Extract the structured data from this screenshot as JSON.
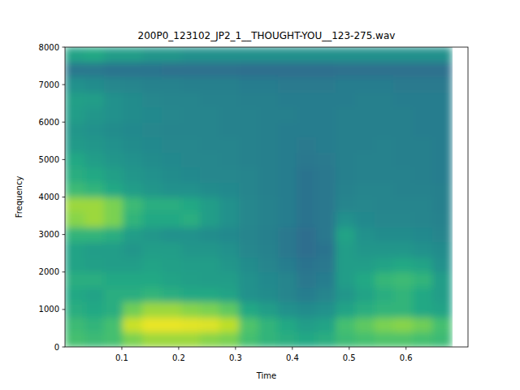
{
  "chart_data": {
    "type": "heatmap",
    "title": "200P0_123102_JP2_1__THOUGHT-YOU__123-275.wav",
    "x_label": "Time",
    "y_label": "Frequency",
    "xlim": [
      0,
      0.709
    ],
    "ylim": [
      0,
      8000
    ],
    "xticks": [
      0.1,
      0.2,
      0.3,
      0.4,
      0.5,
      0.6
    ],
    "yticks": [
      0,
      1000,
      2000,
      3000,
      4000,
      5000,
      6000,
      7000,
      8000
    ],
    "zlim": [
      0,
      1
    ],
    "x_bins": [
      0,
      0.034,
      0.068,
      0.102,
      0.136,
      0.17,
      0.204,
      0.238,
      0.272,
      0.306,
      0.34,
      0.374,
      0.408,
      0.442,
      0.476,
      0.51,
      0.544,
      0.578,
      0.612,
      0.646,
      0.68
    ],
    "y_bins": [
      0,
      400,
      800,
      1200,
      1600,
      2000,
      2400,
      2800,
      3200,
      3600,
      4000,
      4400,
      4800,
      5200,
      5600,
      6000,
      6400,
      6800,
      7200,
      7600,
      8000
    ],
    "cells": [
      [
        0.7,
        0.68,
        0.7,
        0.8,
        0.85,
        0.85,
        0.85,
        0.82,
        0.8,
        0.7,
        0.65,
        0.62,
        0.6,
        0.62,
        0.68,
        0.7,
        0.72,
        0.72,
        0.7,
        0.68
      ],
      [
        0.68,
        0.65,
        0.7,
        0.92,
        0.97,
        0.97,
        0.96,
        0.95,
        0.9,
        0.72,
        0.65,
        0.6,
        0.55,
        0.58,
        0.7,
        0.75,
        0.8,
        0.82,
        0.78,
        0.7
      ],
      [
        0.62,
        0.6,
        0.62,
        0.78,
        0.85,
        0.85,
        0.82,
        0.8,
        0.75,
        0.6,
        0.55,
        0.5,
        0.48,
        0.5,
        0.58,
        0.62,
        0.65,
        0.65,
        0.6,
        0.58
      ],
      [
        0.6,
        0.58,
        0.62,
        0.62,
        0.65,
        0.62,
        0.6,
        0.6,
        0.58,
        0.5,
        0.48,
        0.45,
        0.42,
        0.45,
        0.52,
        0.58,
        0.62,
        0.65,
        0.6,
        0.55
      ],
      [
        0.62,
        0.62,
        0.6,
        0.6,
        0.6,
        0.58,
        0.56,
        0.55,
        0.55,
        0.5,
        0.47,
        0.45,
        0.4,
        0.42,
        0.55,
        0.6,
        0.66,
        0.68,
        0.65,
        0.55
      ],
      [
        0.58,
        0.56,
        0.55,
        0.55,
        0.58,
        0.56,
        0.55,
        0.55,
        0.52,
        0.48,
        0.45,
        0.42,
        0.38,
        0.4,
        0.55,
        0.55,
        0.58,
        0.6,
        0.58,
        0.5
      ],
      [
        0.58,
        0.55,
        0.55,
        0.52,
        0.55,
        0.55,
        0.52,
        0.52,
        0.5,
        0.46,
        0.44,
        0.4,
        0.36,
        0.38,
        0.55,
        0.52,
        0.52,
        0.52,
        0.5,
        0.48
      ],
      [
        0.65,
        0.65,
        0.62,
        0.55,
        0.52,
        0.5,
        0.5,
        0.48,
        0.47,
        0.45,
        0.43,
        0.4,
        0.36,
        0.4,
        0.58,
        0.5,
        0.48,
        0.48,
        0.47,
        0.45
      ],
      [
        0.82,
        0.85,
        0.8,
        0.65,
        0.6,
        0.6,
        0.62,
        0.55,
        0.5,
        0.46,
        0.44,
        0.42,
        0.38,
        0.4,
        0.5,
        0.47,
        0.46,
        0.46,
        0.45,
        0.44
      ],
      [
        0.85,
        0.85,
        0.8,
        0.68,
        0.62,
        0.62,
        0.6,
        0.55,
        0.5,
        0.46,
        0.44,
        0.42,
        0.38,
        0.4,
        0.45,
        0.46,
        0.45,
        0.45,
        0.45,
        0.43
      ],
      [
        0.68,
        0.65,
        0.6,
        0.55,
        0.52,
        0.5,
        0.5,
        0.48,
        0.47,
        0.45,
        0.43,
        0.42,
        0.38,
        0.4,
        0.44,
        0.45,
        0.45,
        0.44,
        0.44,
        0.43
      ],
      [
        0.62,
        0.6,
        0.56,
        0.52,
        0.5,
        0.48,
        0.47,
        0.46,
        0.46,
        0.45,
        0.43,
        0.42,
        0.38,
        0.4,
        0.43,
        0.44,
        0.44,
        0.44,
        0.43,
        0.42
      ],
      [
        0.6,
        0.55,
        0.52,
        0.5,
        0.48,
        0.47,
        0.46,
        0.46,
        0.45,
        0.44,
        0.43,
        0.42,
        0.4,
        0.41,
        0.43,
        0.44,
        0.44,
        0.43,
        0.43,
        0.42
      ],
      [
        0.54,
        0.52,
        0.5,
        0.48,
        0.47,
        0.46,
        0.46,
        0.45,
        0.45,
        0.44,
        0.43,
        0.42,
        0.41,
        0.42,
        0.43,
        0.43,
        0.44,
        0.43,
        0.43,
        0.42
      ],
      [
        0.52,
        0.5,
        0.48,
        0.47,
        0.46,
        0.45,
        0.45,
        0.45,
        0.44,
        0.44,
        0.43,
        0.42,
        0.42,
        0.42,
        0.43,
        0.43,
        0.43,
        0.43,
        0.42,
        0.42
      ],
      [
        0.55,
        0.52,
        0.5,
        0.48,
        0.47,
        0.46,
        0.45,
        0.45,
        0.44,
        0.44,
        0.43,
        0.43,
        0.42,
        0.42,
        0.43,
        0.43,
        0.43,
        0.43,
        0.42,
        0.42
      ],
      [
        0.56,
        0.55,
        0.5,
        0.48,
        0.46,
        0.45,
        0.45,
        0.44,
        0.44,
        0.43,
        0.43,
        0.42,
        0.42,
        0.42,
        0.42,
        0.43,
        0.43,
        0.42,
        0.42,
        0.42
      ],
      [
        0.5,
        0.48,
        0.46,
        0.45,
        0.44,
        0.44,
        0.43,
        0.43,
        0.43,
        0.42,
        0.42,
        0.41,
        0.41,
        0.41,
        0.42,
        0.42,
        0.42,
        0.41,
        0.41,
        0.41
      ],
      [
        0.4,
        0.4,
        0.38,
        0.38,
        0.38,
        0.37,
        0.37,
        0.37,
        0.37,
        0.36,
        0.36,
        0.36,
        0.36,
        0.36,
        0.37,
        0.37,
        0.37,
        0.37,
        0.37,
        0.37
      ],
      [
        0.58,
        0.6,
        0.55,
        0.55,
        0.52,
        0.52,
        0.5,
        0.5,
        0.5,
        0.5,
        0.5,
        0.5,
        0.5,
        0.5,
        0.5,
        0.5,
        0.5,
        0.5,
        0.5,
        0.5
      ]
    ]
  }
}
